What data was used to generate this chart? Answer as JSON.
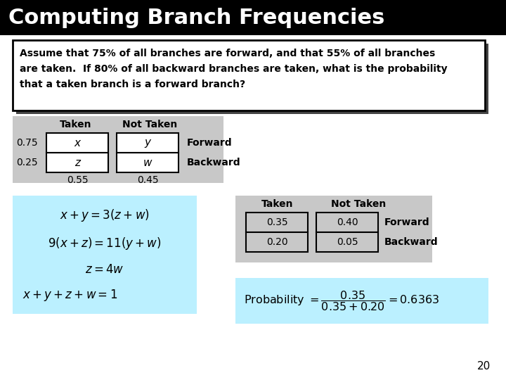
{
  "title": "Computing Branch Frequencies",
  "title_bg": "#000000",
  "title_color": "#ffffff",
  "title_fontsize": 22,
  "problem_text_l1": "Assume that 75% of all branches are forward, and that 55% of all branches",
  "problem_text_l2": "are taken.  If 80% of all backward branches are taken, what is the probability",
  "problem_text_l3": "that a taken branch is a forward branch?",
  "table1_bg": "#c8c8c8",
  "table2_bg": "#c8c8c8",
  "eq_bg": "#bbf0ff",
  "prob_bg": "#bbf0ff",
  "page_num": "20",
  "bg_color": "#ffffff",
  "cell_color": "#ffffff",
  "cell2_color": "#c8c8c8"
}
